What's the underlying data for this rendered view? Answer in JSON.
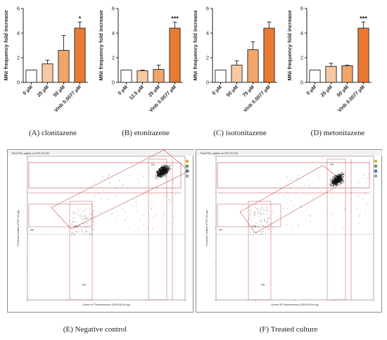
{
  "chart_data": [
    {
      "type": "bar",
      "ylabel": "MNi frequency fold increase",
      "ylim": [
        0,
        6
      ],
      "yticks": [
        "0",
        "2",
        "4",
        "6"
      ],
      "categories": [
        "0 μM",
        "25 μM",
        "50 μM",
        "Vinb 0.0077 μM"
      ],
      "values": [
        1.0,
        1.5,
        2.6,
        4.4
      ],
      "errors": [
        0,
        0.3,
        1.2,
        0.5
      ],
      "significance": [
        "",
        "",
        "",
        "*"
      ],
      "colors": [
        "#ffffff",
        "#f7c9a2",
        "#f1a56b",
        "#ea7a32"
      ],
      "caption": "(A) clonitazene"
    },
    {
      "type": "bar",
      "ylabel": "MNi frequency fold increase",
      "ylim": [
        0,
        6
      ],
      "yticks": [
        "0",
        "2",
        "4",
        "6"
      ],
      "categories": [
        "0 μM",
        "12.5 μM",
        "25 μM",
        "Vinb 0.0077 μM"
      ],
      "values": [
        1.0,
        0.95,
        1.05,
        4.4
      ],
      "errors": [
        0,
        0.05,
        0.35,
        0.5
      ],
      "significance": [
        "",
        "",
        "",
        "***"
      ],
      "colors": [
        "#ffffff",
        "#f7c9a2",
        "#f1a56b",
        "#ea7a32"
      ],
      "caption": "(B) etonitazene"
    },
    {
      "type": "bar",
      "ylabel": "MNi frequency fold increase",
      "ylim": [
        0,
        6
      ],
      "yticks": [
        "0",
        "2",
        "4",
        "6"
      ],
      "categories": [
        "0 μM",
        "50 μM",
        "75 μM",
        "Vinb 0.0077 μM"
      ],
      "values": [
        1.0,
        1.4,
        2.65,
        4.4
      ],
      "errors": [
        0,
        0.35,
        0.65,
        0.5
      ],
      "significance": [
        "",
        "",
        "",
        ""
      ],
      "colors": [
        "#ffffff",
        "#f7c9a2",
        "#f1a56b",
        "#ea7a32"
      ],
      "caption": "(C) isotonitazene"
    },
    {
      "type": "bar",
      "ylabel": "MNi frequency fold increase",
      "ylim": [
        0,
        6
      ],
      "yticks": [
        "0",
        "2",
        "4",
        "6"
      ],
      "categories": [
        "0 μM",
        "25 μM",
        "50 μM",
        "Vinb 0.0077 μM"
      ],
      "values": [
        1.0,
        1.3,
        1.35,
        4.4
      ],
      "errors": [
        0,
        0.25,
        0.05,
        0.5
      ],
      "significance": [
        "",
        "",
        "",
        "***"
      ],
      "colors": [
        "#ffffff",
        "#f7c9a2",
        "#f1a56b",
        "#ea7a32"
      ],
      "caption": "(D) metonitazene"
    },
    {
      "type": "scatter",
      "title": "Plot P04, gated on P01.R1.R2",
      "xlabel": "Green-B Fluorescence (GRN-B-HLog)",
      "ylabel": "Forward Scatter (FSC-HLog)",
      "gates": [
        "R4",
        "R3",
        "R5"
      ],
      "caption": "(E) Negative control"
    },
    {
      "type": "scatter",
      "title": "Plot P04, gated on P01.R1.R2",
      "xlabel": "Green-B Fluorescence (GRN-B-HLog)",
      "ylabel": "Forward Scatter (FSC-HLog)",
      "gates": [
        "R4",
        "R3",
        "R5"
      ],
      "caption": "(F) Treated culture"
    }
  ]
}
